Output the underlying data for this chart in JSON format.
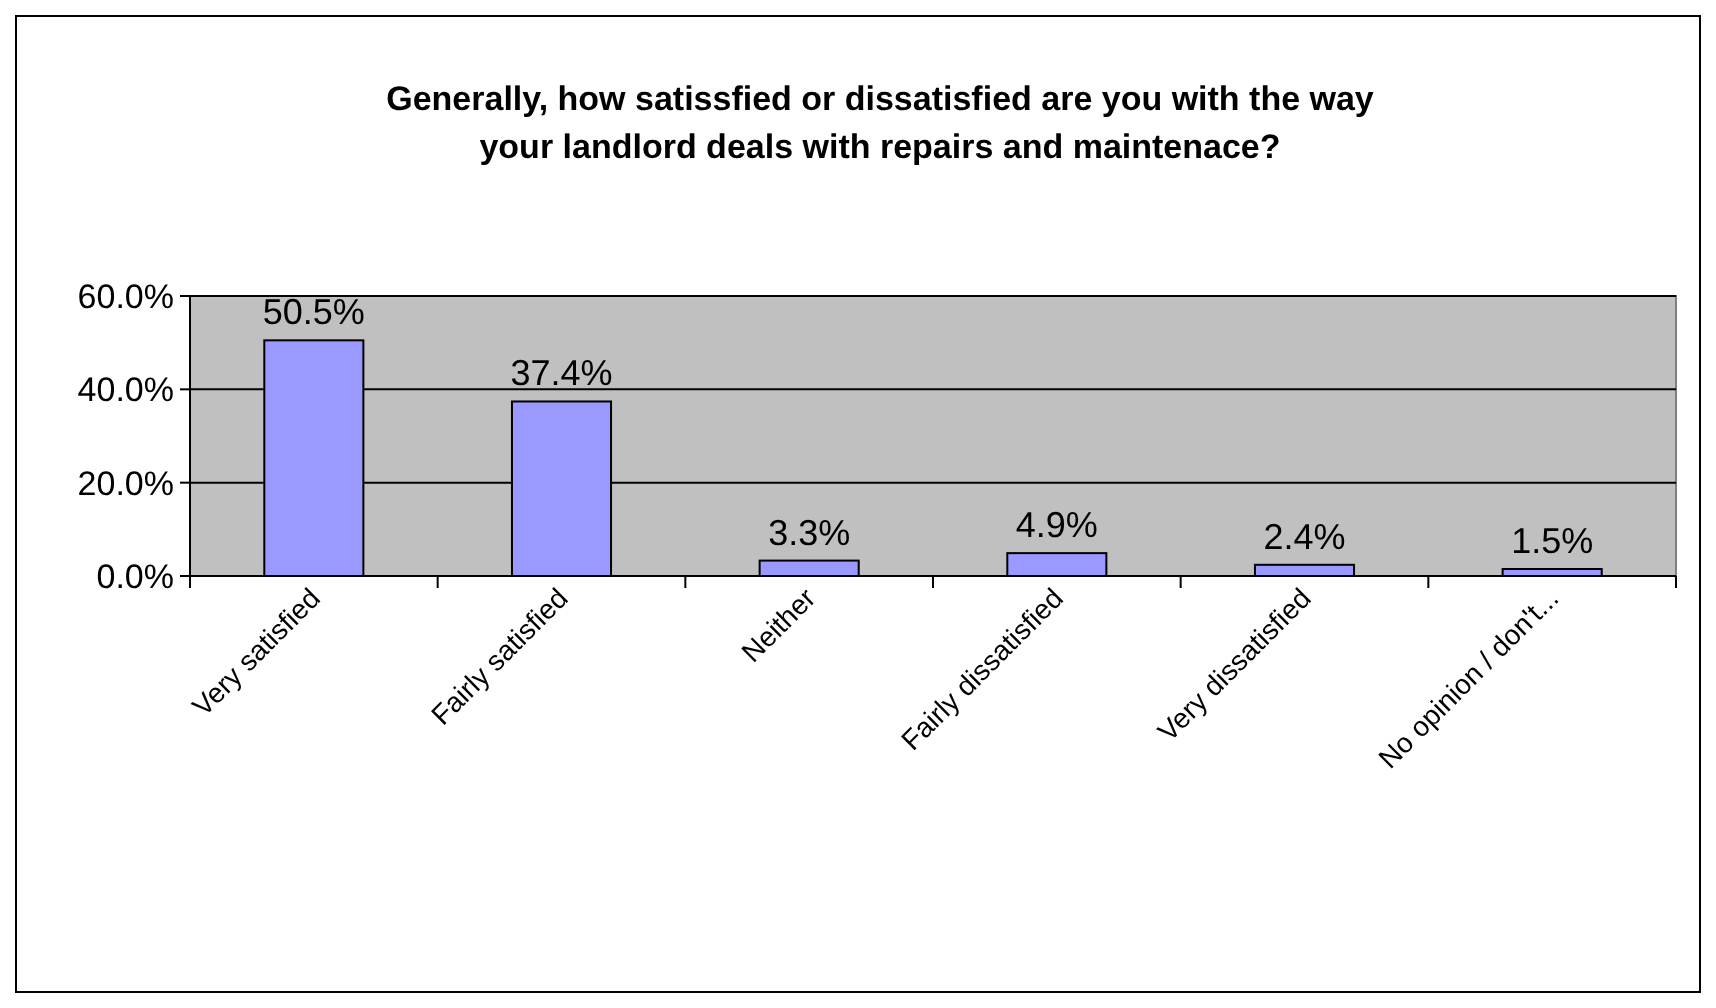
{
  "chart_data": {
    "type": "bar",
    "title": "Generally, how satissfied or dissatisfied are you with the way\nyour landlord deals with repairs and maintenace?",
    "categories": [
      "Very satisfied",
      "Fairly satisfied",
      "Neither",
      "Fairly dissatisfied",
      "Very dissatisfied",
      "No opinion /  don't..."
    ],
    "values": [
      50.5,
      37.4,
      3.3,
      4.9,
      2.4,
      1.5
    ],
    "value_labels": [
      "50.5%",
      "37.4%",
      "3.3%",
      "4.9%",
      "2.4%",
      "1.5%"
    ],
    "color": "#9999ff",
    "ylim": [
      0,
      60
    ],
    "yticks": [
      {
        "value": 0,
        "label": "0.0%"
      },
      {
        "value": 20,
        "label": "20.0%"
      },
      {
        "value": 40,
        "label": "40.0%"
      },
      {
        "value": 60,
        "label": "60.0%"
      }
    ],
    "grid": "y"
  }
}
